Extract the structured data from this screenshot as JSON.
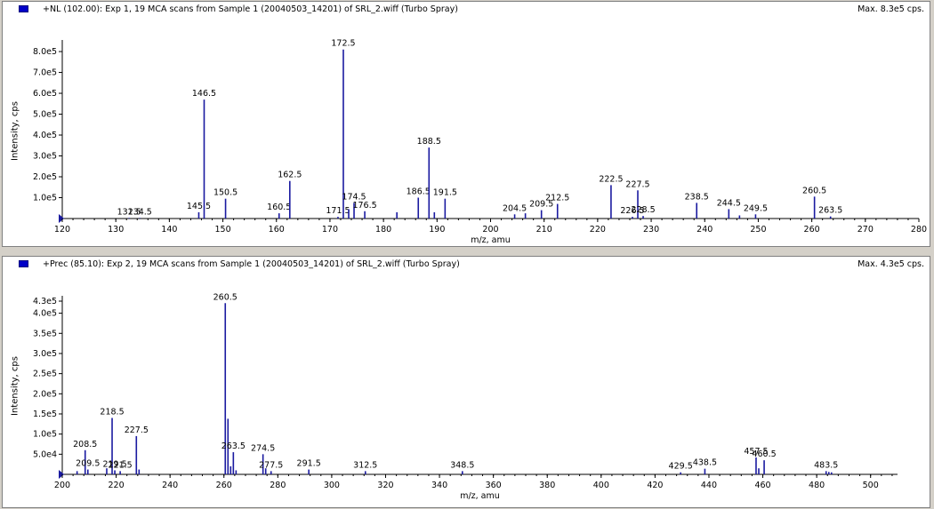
{
  "panels": [
    {
      "title": "+NL (102.00): Exp 1, 19 MCA scans from Sample 1 (20040503_14201) of SRL_2.wiff (Turbo Spray)",
      "max_label": "Max. 8.3e5 cps."
    },
    {
      "title": "+Prec (85.10): Exp 2, 19 MCA scans from Sample 1 (20040503_14201) of SRL_2.wiff (Turbo Spray)",
      "max_label": "Max. 4.3e5 cps."
    }
  ],
  "colors": {
    "stick": "#1a1aa0",
    "header_icon": "#0000c8"
  },
  "chart_data": [
    {
      "type": "bar",
      "xlabel": "m/z, amu",
      "ylabel": "Intensity, cps",
      "xlim": [
        120,
        280
      ],
      "ylim": [
        0,
        830000
      ],
      "x_ticks": [
        "120",
        "130",
        "140",
        "150",
        "160",
        "170",
        "180",
        "190",
        "200",
        "210",
        "220",
        "230",
        "240",
        "250",
        "260",
        "270",
        "280"
      ],
      "y_ticks": [
        "1.0e5",
        "2.0e5",
        "3.0e5",
        "4.0e5",
        "5.0e5",
        "6.0e5",
        "7.0e5",
        "8.0e5"
      ],
      "peaks": [
        {
          "mz": 132.5,
          "y": 3000,
          "label": "132.5"
        },
        {
          "mz": 134.5,
          "y": 3000,
          "label": "134.5"
        },
        {
          "mz": 145.5,
          "y": 30000,
          "label": "145.5"
        },
        {
          "mz": 146.5,
          "y": 570000,
          "label": "146.5"
        },
        {
          "mz": 150.5,
          "y": 95000,
          "label": "150.5"
        },
        {
          "mz": 160.5,
          "y": 25000,
          "label": "160.5"
        },
        {
          "mz": 162.5,
          "y": 180000,
          "label": "162.5"
        },
        {
          "mz": 171.5,
          "y": 8000,
          "label": "171.5"
        },
        {
          "mz": 172.5,
          "y": 810000,
          "label": "172.5"
        },
        {
          "mz": 173.5,
          "y": 45000,
          "label": ""
        },
        {
          "mz": 174.5,
          "y": 75000,
          "label": "174.5"
        },
        {
          "mz": 176.5,
          "y": 35000,
          "label": "176.5"
        },
        {
          "mz": 182.5,
          "y": 30000,
          "label": ""
        },
        {
          "mz": 186.5,
          "y": 100000,
          "label": "186.5"
        },
        {
          "mz": 188.5,
          "y": 340000,
          "label": "188.5"
        },
        {
          "mz": 189.5,
          "y": 30000,
          "label": ""
        },
        {
          "mz": 191.5,
          "y": 95000,
          "label": "191.5"
        },
        {
          "mz": 204.5,
          "y": 20000,
          "label": "204.5"
        },
        {
          "mz": 206.5,
          "y": 25000,
          "label": ""
        },
        {
          "mz": 209.5,
          "y": 40000,
          "label": "209.5"
        },
        {
          "mz": 212.5,
          "y": 70000,
          "label": "212.5"
        },
        {
          "mz": 222.5,
          "y": 160000,
          "label": "222.5"
        },
        {
          "mz": 226.5,
          "y": 8000,
          "label": "226.5"
        },
        {
          "mz": 227.5,
          "y": 135000,
          "label": "227.5"
        },
        {
          "mz": 228.5,
          "y": 12000,
          "label": "228.5"
        },
        {
          "mz": 238.5,
          "y": 75000,
          "label": "238.5"
        },
        {
          "mz": 244.5,
          "y": 45000,
          "label": "244.5"
        },
        {
          "mz": 246.5,
          "y": 15000,
          "label": ""
        },
        {
          "mz": 249.5,
          "y": 20000,
          "label": "249.5"
        },
        {
          "mz": 260.5,
          "y": 105000,
          "label": "260.5"
        },
        {
          "mz": 263.5,
          "y": 10000,
          "label": "263.5"
        }
      ]
    },
    {
      "type": "bar",
      "xlabel": "m/z, amu",
      "ylabel": "Intensity, cps",
      "xlim": [
        200,
        510
      ],
      "ylim": [
        0,
        430000
      ],
      "x_ticks": [
        "200",
        "220",
        "240",
        "260",
        "280",
        "300",
        "320",
        "340",
        "360",
        "380",
        "400",
        "420",
        "440",
        "460",
        "480",
        "500"
      ],
      "y_ticks": [
        "5.0e4",
        "1.0e5",
        "1.5e5",
        "2.0e5",
        "2.5e5",
        "3.0e5",
        "3.5e5",
        "4.0e5",
        "4.3e5"
      ],
      "peaks": [
        {
          "mz": 205.5,
          "y": 8000,
          "label": ""
        },
        {
          "mz": 208.5,
          "y": 60000,
          "label": "208.5"
        },
        {
          "mz": 209.5,
          "y": 12000,
          "label": "209.5"
        },
        {
          "mz": 216.5,
          "y": 15000,
          "label": ""
        },
        {
          "mz": 218.5,
          "y": 140000,
          "label": "218.5"
        },
        {
          "mz": 219.5,
          "y": 10000,
          "label": "219.5"
        },
        {
          "mz": 221.5,
          "y": 8000,
          "label": "221.5"
        },
        {
          "mz": 227.5,
          "y": 95000,
          "label": "227.5"
        },
        {
          "mz": 228.5,
          "y": 12000,
          "label": ""
        },
        {
          "mz": 260.5,
          "y": 425000,
          "label": "260.5"
        },
        {
          "mz": 261.5,
          "y": 138000,
          "label": ""
        },
        {
          "mz": 262.5,
          "y": 20000,
          "label": ""
        },
        {
          "mz": 263.5,
          "y": 55000,
          "label": "263.5"
        },
        {
          "mz": 264.5,
          "y": 10000,
          "label": ""
        },
        {
          "mz": 274.5,
          "y": 50000,
          "label": "274.5"
        },
        {
          "mz": 275.5,
          "y": 15000,
          "label": ""
        },
        {
          "mz": 277.5,
          "y": 8000,
          "label": "277.5"
        },
        {
          "mz": 291.5,
          "y": 12000,
          "label": "291.5"
        },
        {
          "mz": 312.5,
          "y": 8000,
          "label": "312.5"
        },
        {
          "mz": 348.5,
          "y": 8000,
          "label": "348.5"
        },
        {
          "mz": 429.5,
          "y": 5000,
          "label": "429.5"
        },
        {
          "mz": 438.5,
          "y": 14000,
          "label": "438.5"
        },
        {
          "mz": 457.5,
          "y": 42000,
          "label": "457.5"
        },
        {
          "mz": 458.5,
          "y": 15000,
          "label": ""
        },
        {
          "mz": 460.5,
          "y": 35000,
          "label": "460.5"
        },
        {
          "mz": 483.5,
          "y": 8000,
          "label": "483.5"
        },
        {
          "mz": 484.5,
          "y": 6000,
          "label": ""
        },
        {
          "mz": 485.5,
          "y": 5000,
          "label": ""
        }
      ]
    }
  ]
}
